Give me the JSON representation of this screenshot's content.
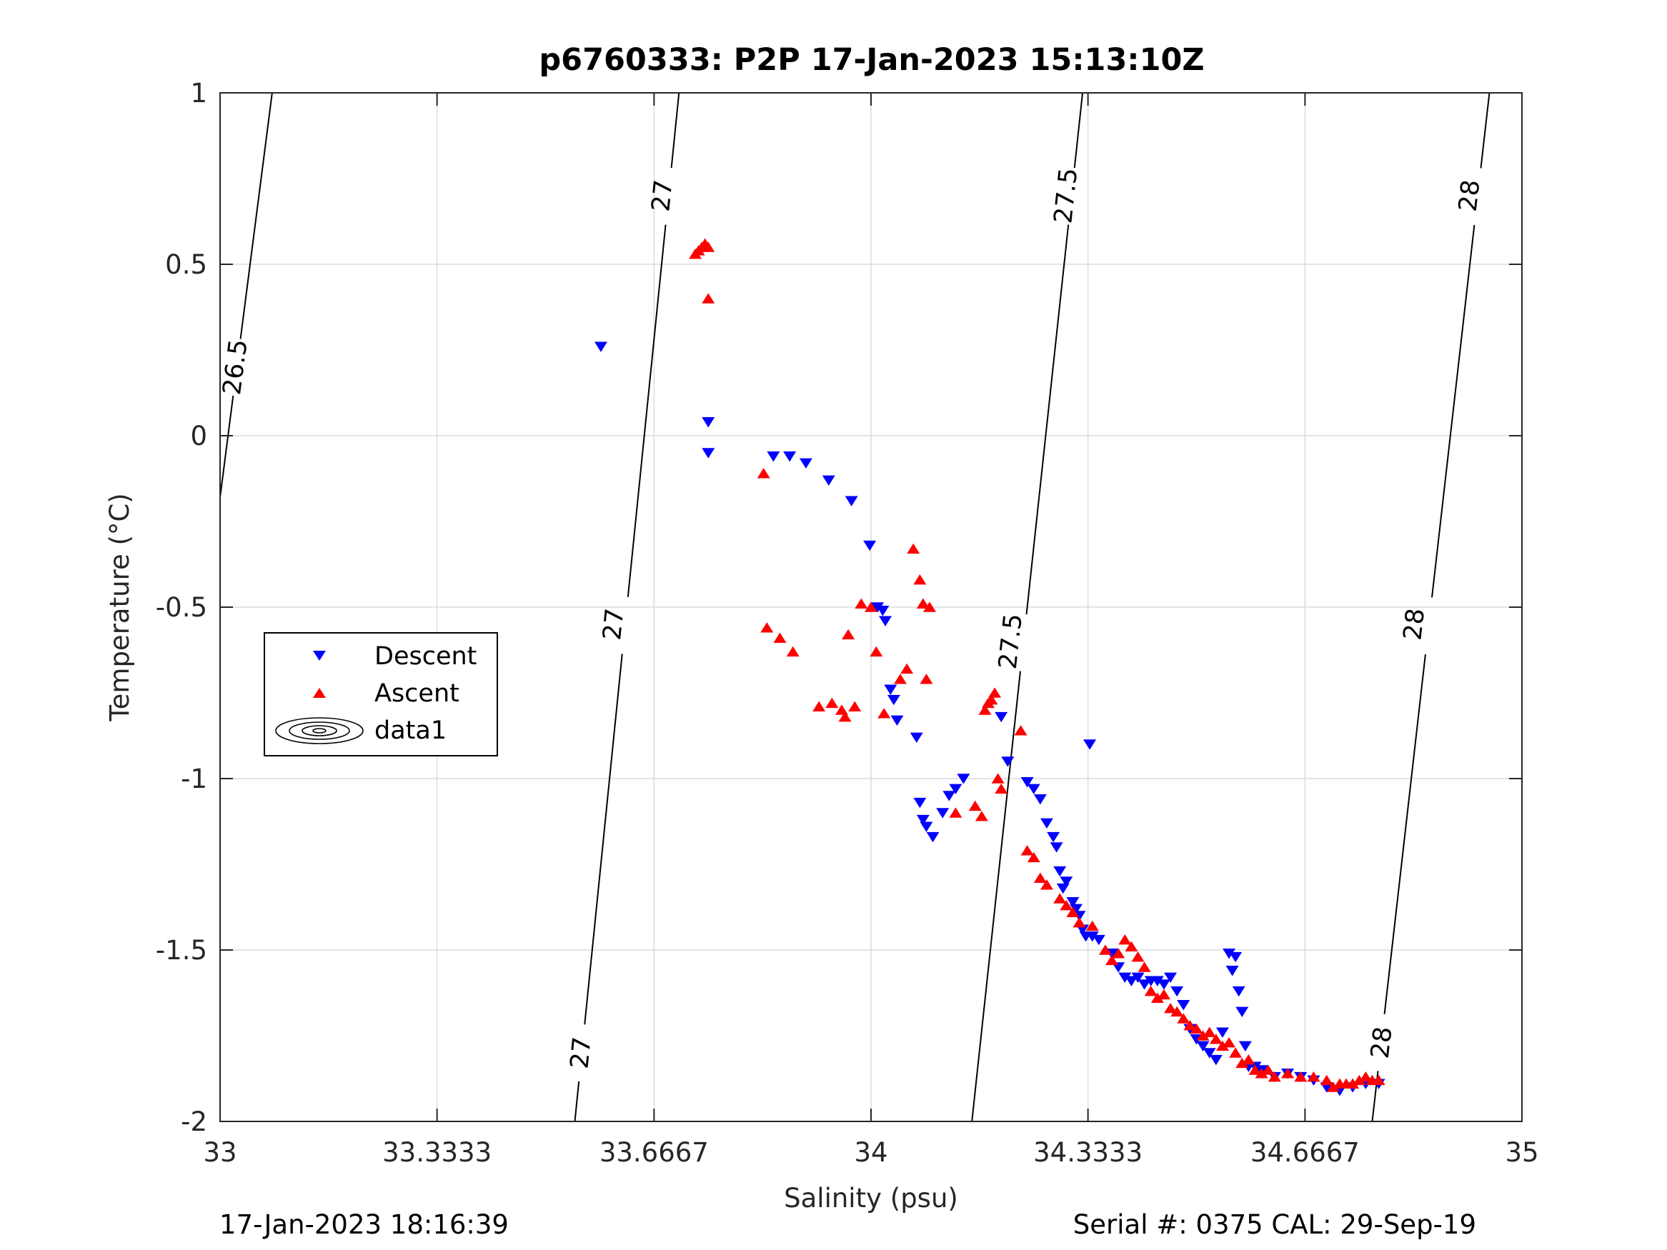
{
  "chart_data": {
    "type": "scatter",
    "title": "p6760333: P2P 17-Jan-2023 15:13:10Z",
    "xlabel": "Salinity (psu)",
    "ylabel": "Temperature (°C)",
    "xlim": [
      33,
      35
    ],
    "ylim": [
      -2,
      1
    ],
    "xticks": [
      33,
      33.3333,
      33.6667,
      34,
      34.3333,
      34.6667,
      35
    ],
    "xtick_labels": [
      "33",
      "33.3333",
      "33.6667",
      "34",
      "34.3333",
      "34.6667",
      "35"
    ],
    "yticks": [
      -2,
      -1.5,
      -1,
      -0.5,
      0,
      0.5,
      1
    ],
    "ytick_labels": [
      "-2",
      "-1.5",
      "-1",
      "-0.5",
      "0",
      "0.5",
      "1"
    ],
    "grid": true,
    "legend_position": "left",
    "footer_left": "17-Jan-2023 18:16:39",
    "footer_right": "Serial #: 0375  CAL: 29-Sep-19",
    "colors": {
      "descent": "#0000ff",
      "ascent": "#ff0000",
      "contour": "#000000",
      "grid": "#dcdcdc"
    },
    "contours": [
      {
        "level": "26.5",
        "line": [
          [
            33.0,
            -0.18
          ],
          [
            33.08,
            1.0
          ]
        ],
        "labels": [
          {
            "x": 33.024,
            "y": 0.2
          }
        ]
      },
      {
        "level": "27",
        "line": [
          [
            33.545,
            -2.0
          ],
          [
            33.705,
            1.0
          ]
        ],
        "labels": [
          {
            "x": 33.555,
            "y": -1.8
          },
          {
            "x": 33.605,
            "y": -0.55
          },
          {
            "x": 33.68,
            "y": 0.7
          }
        ]
      },
      {
        "level": "27.5",
        "line": [
          [
            34.155,
            -2.0
          ],
          [
            34.325,
            1.0
          ]
        ],
        "labels": [
          {
            "x": 34.215,
            "y": -0.6
          },
          {
            "x": 34.3,
            "y": 0.7
          }
        ]
      },
      {
        "level": "28",
        "line": [
          [
            34.77,
            -2.0
          ],
          [
            34.95,
            1.0
          ]
        ],
        "labels": [
          {
            "x": 34.785,
            "y": -1.77
          },
          {
            "x": 34.835,
            "y": -0.55
          },
          {
            "x": 34.92,
            "y": 0.7
          }
        ]
      }
    ],
    "series": [
      {
        "name": "Descent",
        "marker": "triangle-down",
        "x": [
          33.585,
          33.75,
          33.85,
          33.875,
          33.9,
          33.935,
          33.97,
          33.998,
          34.01,
          34.018,
          34.022,
          34.03,
          34.035,
          34.04,
          34.07,
          34.075,
          34.08,
          34.085,
          34.095,
          34.11,
          34.12,
          34.13,
          34.142,
          34.2,
          34.21,
          34.24,
          34.25,
          34.26,
          34.27,
          34.28,
          34.285,
          34.29,
          34.295,
          34.3,
          34.31,
          34.315,
          34.32,
          34.325,
          34.33,
          34.34,
          34.35,
          34.37,
          34.38,
          34.39,
          34.4,
          34.41,
          34.42,
          34.43,
          34.44,
          34.45,
          34.46,
          34.47,
          34.48,
          34.49,
          34.5,
          34.51,
          34.52,
          34.53,
          34.54,
          34.55,
          34.555,
          34.56,
          34.565,
          34.57,
          34.575,
          34.58,
          34.59,
          34.6,
          34.62,
          34.64,
          34.66,
          34.68,
          34.7,
          34.72,
          34.74,
          34.76,
          34.78,
          34.336,
          33.75
        ],
        "y": [
          0.26,
          0.04,
          -0.06,
          -0.06,
          -0.08,
          -0.13,
          -0.19,
          -0.32,
          -0.5,
          -0.51,
          -0.54,
          -0.74,
          -0.77,
          -0.83,
          -0.88,
          -1.07,
          -1.12,
          -1.14,
          -1.17,
          -1.1,
          -1.05,
          -1.03,
          -1.0,
          -0.82,
          -0.95,
          -1.01,
          -1.03,
          -1.06,
          -1.13,
          -1.17,
          -1.2,
          -1.27,
          -1.32,
          -1.3,
          -1.36,
          -1.38,
          -1.4,
          -1.44,
          -1.46,
          -1.46,
          -1.47,
          -1.51,
          -1.55,
          -1.58,
          -1.59,
          -1.58,
          -1.6,
          -1.59,
          -1.59,
          -1.6,
          -1.58,
          -1.62,
          -1.66,
          -1.73,
          -1.76,
          -1.78,
          -1.8,
          -1.82,
          -1.74,
          -1.51,
          -1.56,
          -1.52,
          -1.62,
          -1.68,
          -1.78,
          -1.84,
          -1.84,
          -1.85,
          -1.87,
          -1.86,
          -1.87,
          -1.88,
          -1.9,
          -1.91,
          -1.9,
          -1.89,
          -1.89,
          -0.9,
          -0.05
        ]
      },
      {
        "name": "Ascent",
        "marker": "triangle-up",
        "x": [
          33.73,
          33.735,
          33.74,
          33.745,
          33.75,
          33.75,
          33.835,
          33.84,
          33.86,
          33.88,
          33.92,
          33.94,
          33.955,
          33.96,
          33.965,
          33.975,
          33.985,
          34.0,
          34.008,
          34.02,
          34.045,
          34.055,
          34.065,
          34.075,
          34.08,
          34.085,
          34.09,
          34.13,
          34.16,
          34.17,
          34.175,
          34.18,
          34.185,
          34.19,
          34.195,
          34.2,
          34.23,
          34.24,
          34.25,
          34.26,
          34.27,
          34.29,
          34.3,
          34.31,
          34.32,
          34.34,
          34.36,
          34.37,
          34.38,
          34.39,
          34.4,
          34.41,
          34.42,
          34.43,
          34.44,
          34.45,
          34.46,
          34.47,
          34.48,
          34.49,
          34.5,
          34.51,
          34.52,
          34.53,
          34.54,
          34.55,
          34.56,
          34.57,
          34.58,
          34.59,
          34.6,
          34.61,
          34.62,
          34.64,
          34.66,
          34.68,
          34.7,
          34.71,
          34.72,
          34.73,
          34.74,
          34.75,
          34.76,
          34.77,
          34.78
        ],
        "y": [
          0.53,
          0.54,
          0.55,
          0.56,
          0.55,
          0.4,
          -0.11,
          -0.56,
          -0.59,
          -0.63,
          -0.79,
          -0.78,
          -0.8,
          -0.82,
          -0.58,
          -0.79,
          -0.49,
          -0.5,
          -0.63,
          -0.81,
          -0.71,
          -0.68,
          -0.33,
          -0.42,
          -0.49,
          -0.71,
          -0.5,
          -1.1,
          -1.08,
          -1.11,
          -0.8,
          -0.78,
          -0.77,
          -0.75,
          -1.0,
          -1.03,
          -0.86,
          -1.21,
          -1.23,
          -1.29,
          -1.31,
          -1.35,
          -1.37,
          -1.39,
          -1.42,
          -1.43,
          -1.5,
          -1.53,
          -1.51,
          -1.47,
          -1.49,
          -1.52,
          -1.55,
          -1.62,
          -1.64,
          -1.63,
          -1.67,
          -1.68,
          -1.7,
          -1.72,
          -1.73,
          -1.75,
          -1.74,
          -1.76,
          -1.78,
          -1.77,
          -1.8,
          -1.83,
          -1.82,
          -1.85,
          -1.86,
          -1.85,
          -1.87,
          -1.86,
          -1.87,
          -1.87,
          -1.88,
          -1.9,
          -1.89,
          -1.89,
          -1.89,
          -1.88,
          -1.87,
          -1.88,
          -1.88
        ]
      }
    ],
    "legend": [
      {
        "label": "Descent",
        "marker": "triangle-down"
      },
      {
        "label": "Ascent",
        "marker": "triangle-up"
      },
      {
        "label": "data1",
        "marker": "contour"
      }
    ]
  }
}
